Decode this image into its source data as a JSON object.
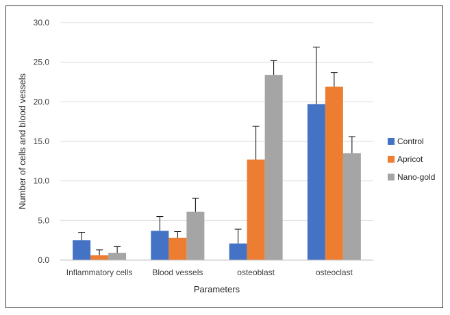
{
  "chart_data": {
    "type": "bar",
    "title": "",
    "xlabel": "Parameters",
    "ylabel": "Number of cells and blood vessels",
    "ylim": [
      0,
      30
    ],
    "yticks": [
      "0.0",
      "5.0",
      "10.0",
      "15.0",
      "20.0",
      "25.0",
      "30.0"
    ],
    "grid": true,
    "legend_position": "right",
    "categories": [
      "Inflammatory cells",
      "Blood vessels",
      "osteoblast",
      "osteoclast"
    ],
    "series": [
      {
        "name": "Control",
        "color": "#4472C4",
        "values": [
          2.5,
          3.7,
          2.1,
          19.7
        ],
        "errors": [
          1.0,
          1.8,
          1.8,
          7.2
        ]
      },
      {
        "name": "Apricot",
        "color": "#ED7D31",
        "values": [
          0.6,
          2.8,
          12.7,
          21.9
        ],
        "errors": [
          0.7,
          0.8,
          4.2,
          1.8
        ]
      },
      {
        "name": "Nano-gold",
        "color": "#A5A5A5",
        "values": [
          0.9,
          6.1,
          23.4,
          13.5
        ],
        "errors": [
          0.8,
          1.7,
          1.8,
          2.1
        ]
      }
    ]
  }
}
